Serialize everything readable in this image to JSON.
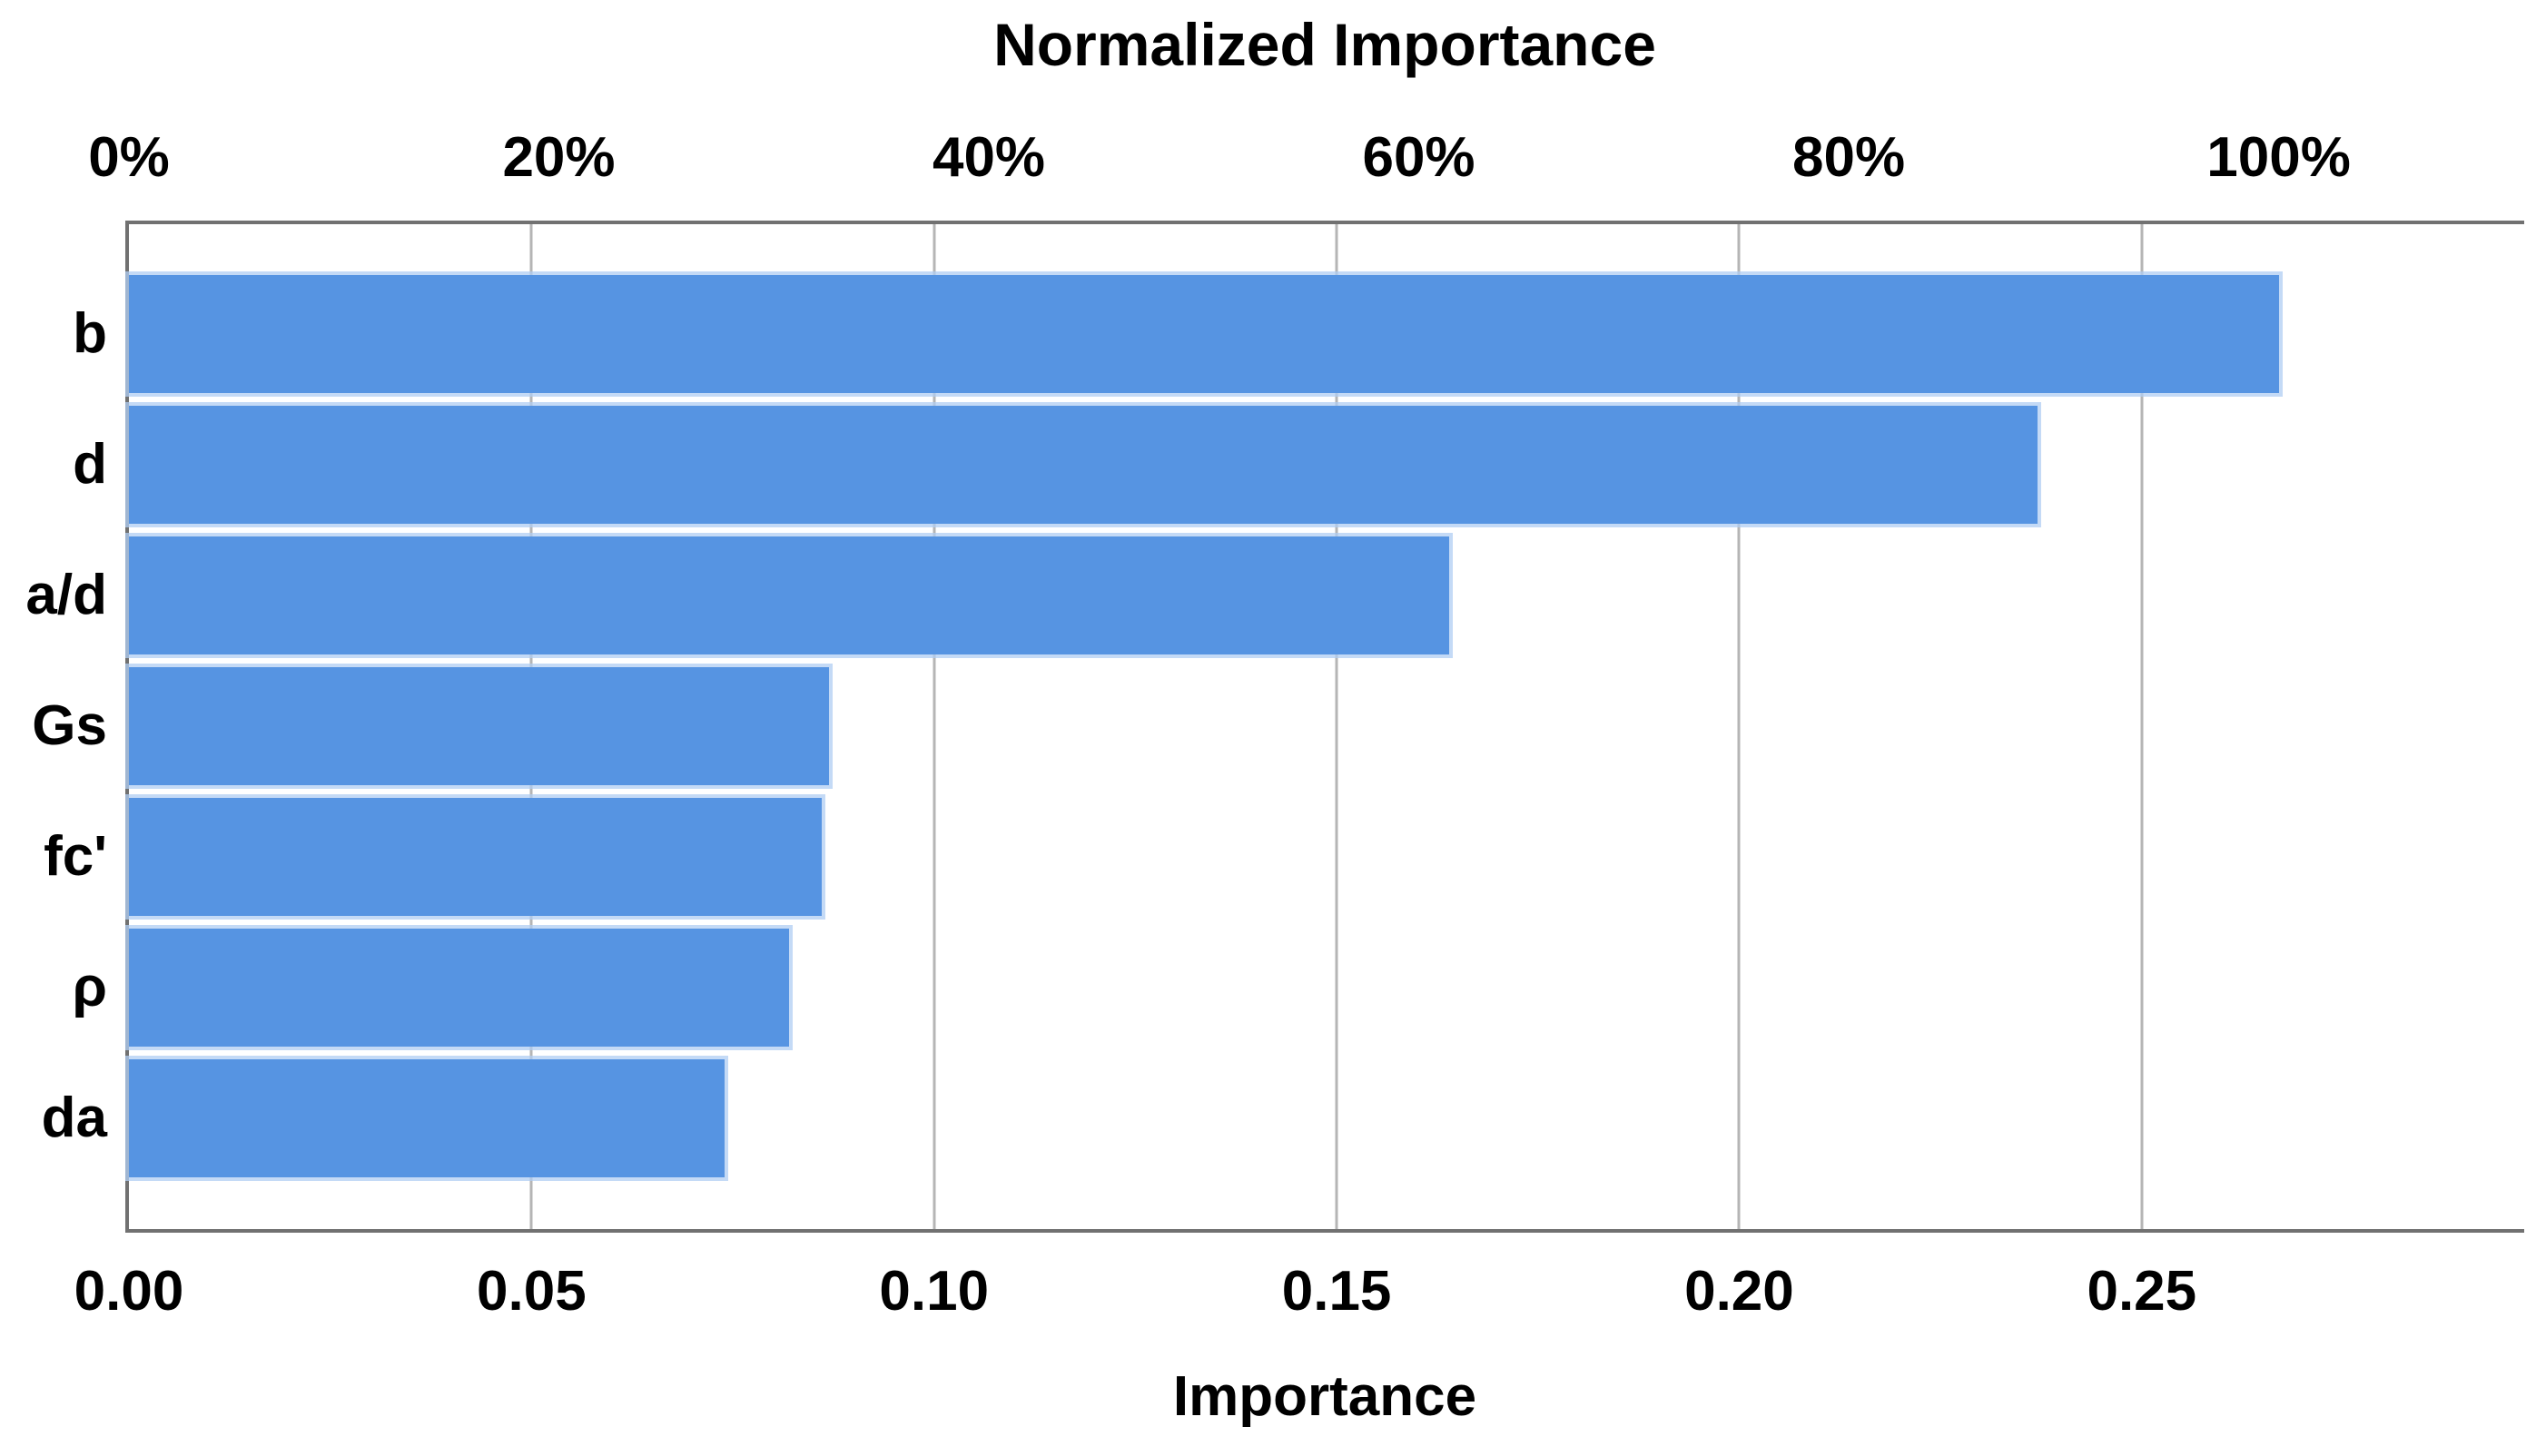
{
  "chart_data": {
    "type": "bar",
    "orientation": "horizontal",
    "title": "Normalized Importance",
    "xlabel": "Importance",
    "categories": [
      "b",
      "d",
      "a/d",
      "Gs",
      "fc'",
      "ρ",
      "da"
    ],
    "values": [
      0.267,
      0.237,
      0.164,
      0.087,
      0.086,
      0.082,
      0.074
    ],
    "normalized_percent": [
      100,
      89,
      61,
      33,
      32,
      31,
      28
    ],
    "bottom_axis": {
      "label": "Importance",
      "tick_labels": [
        "0.00",
        "0.05",
        "0.10",
        "0.15",
        "0.20",
        "0.25"
      ],
      "tick_values": [
        0.0,
        0.05,
        0.1,
        0.15,
        0.2,
        0.25
      ],
      "max": 0.2975
    },
    "top_axis": {
      "label": "Normalized Importance",
      "tick_labels": [
        "0%",
        "20%",
        "40%",
        "60%",
        "80%",
        "100%"
      ],
      "tick_percents": [
        0,
        20,
        40,
        60,
        80,
        100
      ],
      "value_at_100_percent": 0.267
    },
    "grid": true,
    "legend": false,
    "colors": {
      "bar_fill": "#5694e2",
      "bar_glow": "#c9dcf5",
      "plot_border": "#717171",
      "gridline": "#b5b5b5",
      "text": "#000000",
      "background": "#ffffff"
    }
  }
}
